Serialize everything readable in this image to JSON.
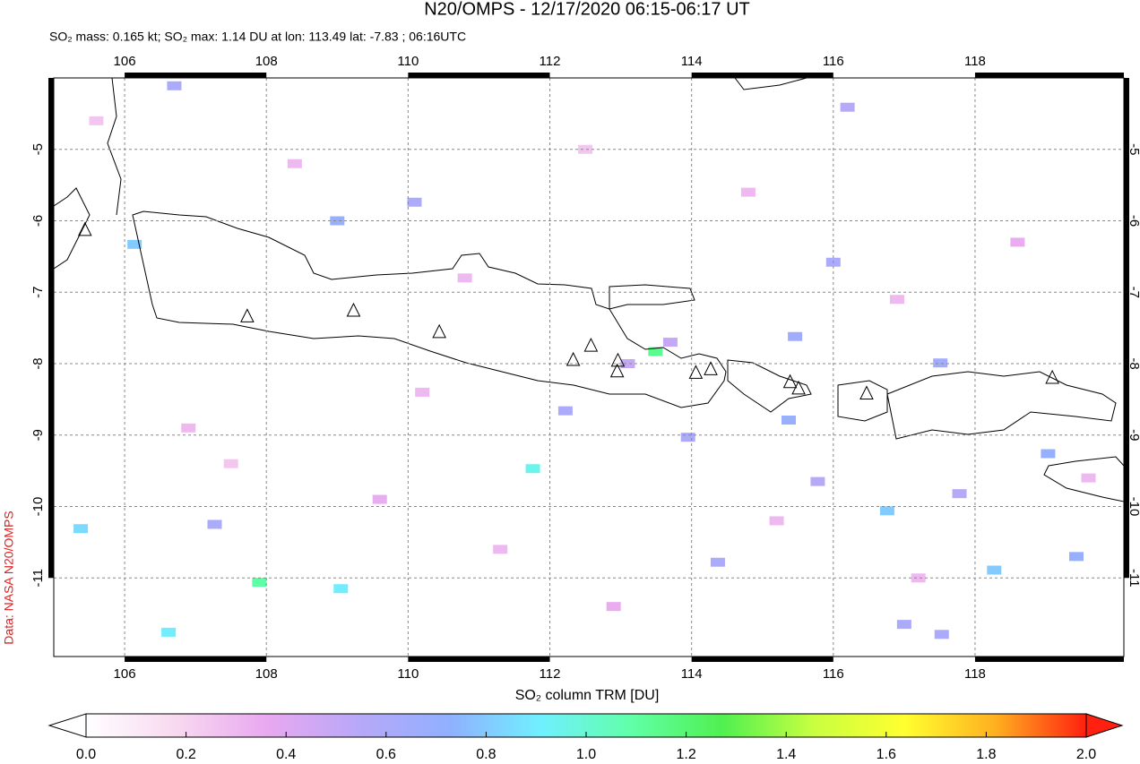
{
  "chart_data": {
    "type": "map",
    "title": "N20/OMPS - 12/17/2020 06:15-06:17 UT",
    "subtitle": "SO₂ mass: 0.165 kt; SO₂ max: 1.14 DU at lon: 113.49 lat: -7.83 ; 06:16UTC",
    "side_text": "Data: NASA N20/OMPS",
    "xlim": [
      105,
      120.1
    ],
    "ylim": [
      -12.1,
      -4
    ],
    "xticks": [
      106,
      108,
      110,
      112,
      114,
      116,
      118
    ],
    "yticks": [
      -5,
      -6,
      -7,
      -8,
      -9,
      -10,
      -11
    ],
    "grid": true,
    "pixels": {
      "lon": [
        113.49,
        111.76,
        107.9,
        106.14,
        105.38,
        106.62,
        109.05,
        116.76,
        118.27,
        119.03,
        119.43,
        115.37,
        115.46,
        117.51,
        116.0,
        116.2,
        109.0,
        110.09,
        113.95,
        112.22,
        117.53,
        117.0,
        114.37,
        107.27,
        106.7,
        117.78,
        115.78,
        113.1,
        113.7,
        108.4,
        110.8,
        106.9,
        109.6,
        111.3,
        112.9,
        114.8,
        116.9,
        118.6,
        119.6,
        105.6,
        107.5,
        110.2,
        112.5,
        115.2,
        117.2
      ],
      "lat": [
        -7.83,
        -9.47,
        -11.06,
        -6.33,
        -10.31,
        -11.76,
        -11.15,
        -10.06,
        -10.89,
        -9.26,
        -10.7,
        -8.79,
        -7.62,
        -7.99,
        -6.58,
        -4.41,
        -6.0,
        -5.74,
        -9.03,
        -8.66,
        -11.79,
        -11.65,
        -10.78,
        -10.25,
        -4.11,
        -9.82,
        -9.65,
        -8.0,
        -7.7,
        -5.2,
        -6.8,
        -8.9,
        -9.9,
        -10.6,
        -11.4,
        -5.6,
        -7.1,
        -6.3,
        -9.6,
        -4.6,
        -9.4,
        -8.4,
        -5.0,
        -10.2,
        -11.0
      ],
      "values": [
        1.14,
        0.95,
        1.1,
        0.8,
        0.85,
        0.9,
        0.9,
        0.8,
        0.8,
        0.7,
        0.7,
        0.7,
        0.65,
        0.65,
        0.6,
        0.55,
        0.7,
        0.6,
        0.6,
        0.6,
        0.6,
        0.6,
        0.6,
        0.6,
        0.6,
        0.55,
        0.55,
        0.5,
        0.5,
        0.3,
        0.3,
        0.3,
        0.35,
        0.3,
        0.35,
        0.3,
        0.3,
        0.35,
        0.3,
        0.25,
        0.25,
        0.3,
        0.25,
        0.3,
        0.3
      ]
    },
    "volcanoes": {
      "lon": [
        105.44,
        107.73,
        109.23,
        110.44,
        112.33,
        112.58,
        112.96,
        112.95,
        114.06,
        114.27,
        115.39,
        115.51,
        116.47,
        119.09
      ],
      "lat": [
        -6.13,
        -7.34,
        -7.26,
        -7.56,
        -7.95,
        -7.75,
        -7.96,
        -8.11,
        -8.13,
        -8.08,
        -8.26,
        -8.35,
        -8.42,
        -8.2
      ]
    },
    "colorbar": {
      "label": "SO₂ column TRM [DU]",
      "range": [
        0,
        2
      ],
      "colors": [
        "#ffffff",
        "#f8d8f0",
        "#e8a8f0",
        "#b8a8f8",
        "#90b0ff",
        "#70f0ff",
        "#60ffa8",
        "#50f050",
        "#c8ff40",
        "#ffff30",
        "#ffb020",
        "#ff2010"
      ],
      "ticks": [
        {
          "value": 0,
          "label": "0.0"
        },
        {
          "value": 0.2,
          "label": "0.2"
        },
        {
          "value": 0.4,
          "label": "0.4"
        },
        {
          "value": 0.6,
          "label": "0.6"
        },
        {
          "value": 0.8,
          "label": "0.8"
        },
        {
          "value": 1,
          "label": "1.0"
        },
        {
          "value": 1.2,
          "label": "1.2"
        },
        {
          "value": 1.4,
          "label": "1.4"
        },
        {
          "value": 1.6,
          "label": "1.6"
        },
        {
          "value": 1.8,
          "label": "1.8"
        },
        {
          "value": 2,
          "label": "2.0"
        }
      ]
    }
  }
}
